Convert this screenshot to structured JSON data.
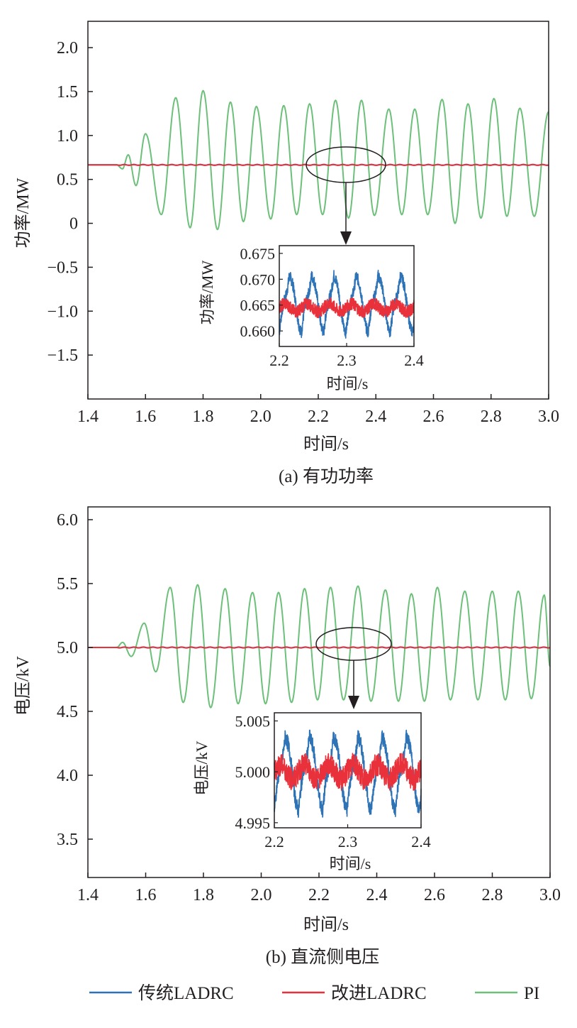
{
  "chart_data": [
    {
      "type": "line",
      "panel": "a",
      "caption": "(a) 有功功率",
      "xlabel": "时间/s",
      "ylabel": "功率/MW",
      "xlim": [
        1.4,
        3.0
      ],
      "ylim": [
        -2.0,
        2.3
      ],
      "xticks": [
        "1.4",
        "1.6",
        "1.8",
        "2.0",
        "2.2",
        "2.4",
        "2.6",
        "2.8",
        "3.0"
      ],
      "yticks": [
        "2.0",
        "1.5",
        "1.0",
        "0.5",
        "0",
        "−0.5",
        "−1.0",
        "−1.5"
      ],
      "ytick_values": [
        2.0,
        1.5,
        1.0,
        0.5,
        0,
        -0.5,
        -1.0,
        -1.5
      ],
      "series": [
        {
          "name": "传统LADRC",
          "steady": 0.665,
          "ripple": 0.01
        },
        {
          "name": "改进LADRC",
          "steady": 0.665,
          "ripple": 0.004
        },
        {
          "name": "PI",
          "steady": 0.665,
          "disturbance_start": 1.5,
          "oscillation_period": 0.092,
          "peaks_x": [
            1.54,
            1.6,
            1.705,
            1.8,
            1.895,
            1.985,
            2.08,
            2.17,
            2.26,
            2.35,
            2.445,
            2.535,
            2.63,
            2.72,
            2.81,
            2.9,
            3.0
          ],
          "peaks_y": [
            0.78,
            1.02,
            1.43,
            1.51,
            1.38,
            1.33,
            1.34,
            1.36,
            1.4,
            1.4,
            1.3,
            1.3,
            1.41,
            1.36,
            1.42,
            1.31,
            1.27
          ],
          "troughs_x": [
            1.52,
            1.567,
            1.655,
            1.755,
            1.85,
            1.94,
            2.035,
            2.125,
            2.215,
            2.305,
            2.395,
            2.49,
            2.58,
            2.675,
            2.765,
            2.855,
            2.95
          ],
          "troughs_y": [
            0.62,
            0.43,
            0.1,
            -0.05,
            -0.07,
            0.02,
            0.05,
            0.1,
            0.1,
            0.06,
            0.09,
            0.1,
            0.1,
            0.0,
            0.06,
            0.08,
            0.08
          ]
        }
      ],
      "inset": {
        "xlabel": "时间/s",
        "ylabel": "功率/MW",
        "xlim": [
          2.2,
          2.4
        ],
        "ylim": [
          0.657,
          0.6765
        ],
        "xticks": [
          "2.2",
          "2.3",
          "2.4"
        ],
        "yticks": [
          "0.675",
          "0.670",
          "0.665",
          "0.660"
        ],
        "ytick_values": [
          0.675,
          0.67,
          0.665,
          0.66
        ],
        "series": [
          {
            "name": "传统LADRC",
            "center": 0.6655,
            "amplitude": 0.0065,
            "period": 0.033
          },
          {
            "name": "改进LADRC",
            "center": 0.6645,
            "amplitude": 0.0015,
            "period": 0.033
          }
        ]
      }
    },
    {
      "type": "line",
      "panel": "b",
      "caption": "(b) 直流侧电压",
      "xlabel": "时间/s",
      "ylabel": "电压/kV",
      "xlim": [
        1.4,
        3.0
      ],
      "ylim": [
        3.2,
        6.1
      ],
      "xticks": [
        "1.4",
        "1.6",
        "1.8",
        "2.0",
        "2.2",
        "2.4",
        "2.6",
        "2.8",
        "3.0"
      ],
      "yticks": [
        "6.0",
        "5.5",
        "5.0",
        "4.5",
        "4.0",
        "3.5"
      ],
      "ytick_values": [
        6.0,
        5.5,
        5.0,
        4.5,
        4.0,
        3.5
      ],
      "series": [
        {
          "name": "传统LADRC",
          "steady": 5.0,
          "ripple": 0.005
        },
        {
          "name": "改进LADRC",
          "steady": 5.0,
          "ripple": 0.002
        },
        {
          "name": "PI",
          "steady": 5.0,
          "disturbance_start": 1.5,
          "oscillation_period": 0.092,
          "peaks_x": [
            1.52,
            1.595,
            1.685,
            1.78,
            1.875,
            1.97,
            2.06,
            2.15,
            2.24,
            2.335,
            2.43,
            2.52,
            2.61,
            2.705,
            2.8,
            2.89,
            2.98
          ],
          "peaks_y": [
            5.04,
            5.19,
            5.47,
            5.49,
            5.46,
            5.43,
            5.43,
            5.46,
            5.47,
            5.48,
            5.45,
            5.42,
            5.47,
            5.44,
            5.44,
            5.44,
            5.41
          ],
          "troughs_x": [
            1.55,
            1.635,
            1.73,
            1.825,
            1.92,
            2.015,
            2.105,
            2.195,
            2.285,
            2.38,
            2.475,
            2.565,
            2.655,
            2.75,
            2.845,
            2.935,
            3.0
          ],
          "troughs_y": [
            4.93,
            4.81,
            4.57,
            4.53,
            4.56,
            4.56,
            4.57,
            4.59,
            4.59,
            4.58,
            4.58,
            4.58,
            4.59,
            4.59,
            4.59,
            4.6,
            4.85
          ]
        }
      ],
      "inset": {
        "xlabel": "时间/s",
        "ylabel": "电压/kV",
        "xlim": [
          2.2,
          2.4
        ],
        "ylim": [
          4.9945,
          5.0058
        ],
        "xticks": [
          "2.2",
          "2.3",
          "2.4"
        ],
        "yticks": [
          "5.005",
          "5.000",
          "4.995"
        ],
        "ytick_values": [
          5.005,
          5.0,
          4.995
        ],
        "series": [
          {
            "name": "传统LADRC",
            "center": 5.0,
            "amplitude": 0.0043,
            "period": 0.033
          },
          {
            "name": "改进LADRC",
            "center": 5.0,
            "amplitude": 0.0014,
            "period": 0.033
          }
        ]
      }
    }
  ],
  "legend": [
    {
      "name": "传统LADRC",
      "color": "#2f73b7"
    },
    {
      "name": "改进LADRC",
      "color": "#e8313a"
    },
    {
      "name": "PI",
      "color": "#6cc07a"
    }
  ]
}
